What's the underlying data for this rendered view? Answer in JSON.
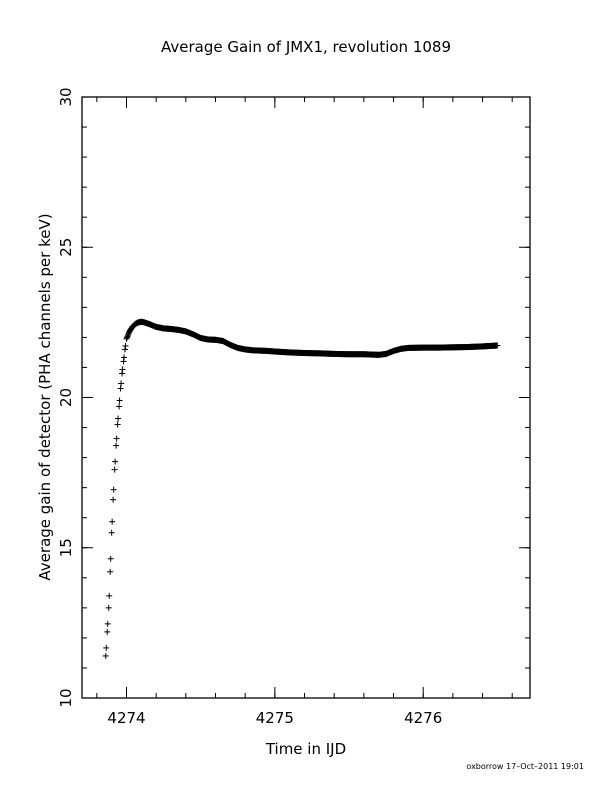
{
  "chart_data": {
    "type": "scatter",
    "title": "Average Gain of JMX1, revolution 1089",
    "xlabel": "Time in IJD",
    "ylabel": "Average gain of detector (PHA channels per keV)",
    "xlim": [
      4273.7,
      4276.72
    ],
    "ylim": [
      10,
      30
    ],
    "xticks": [
      4274,
      4275,
      4276
    ],
    "xtick_labels": [
      "4274",
      "4275",
      "4276"
    ],
    "yticks": [
      10,
      15,
      20,
      25,
      30
    ],
    "ytick_labels": [
      "10",
      "15",
      "20",
      "25",
      "30"
    ],
    "marker": "+",
    "grid": false,
    "legend": "none",
    "series": [
      {
        "points": [
          [
            4273.86,
            11.4
          ],
          [
            4273.87,
            12.2
          ],
          [
            4273.88,
            13.0
          ],
          [
            4273.89,
            14.2
          ],
          [
            4273.9,
            15.5
          ],
          [
            4273.91,
            16.6
          ],
          [
            4273.92,
            17.6
          ],
          [
            4273.93,
            18.4
          ],
          [
            4273.94,
            19.1
          ],
          [
            4273.95,
            19.7
          ],
          [
            4273.96,
            20.3
          ],
          [
            4273.97,
            20.8
          ],
          [
            4273.98,
            21.2
          ],
          [
            4273.99,
            21.6
          ],
          [
            4274.0,
            21.95
          ],
          [
            4274.02,
            22.2
          ],
          [
            4274.04,
            22.35
          ],
          [
            4274.06,
            22.45
          ],
          [
            4274.08,
            22.5
          ],
          [
            4274.1,
            22.52
          ],
          [
            4274.12,
            22.5
          ],
          [
            4274.15,
            22.45
          ],
          [
            4274.2,
            22.35
          ],
          [
            4274.25,
            22.3
          ],
          [
            4274.3,
            22.28
          ],
          [
            4274.35,
            22.25
          ],
          [
            4274.4,
            22.2
          ],
          [
            4274.45,
            22.1
          ],
          [
            4274.5,
            21.98
          ],
          [
            4274.55,
            21.93
          ],
          [
            4274.6,
            21.92
          ],
          [
            4274.65,
            21.88
          ],
          [
            4274.7,
            21.75
          ],
          [
            4274.75,
            21.65
          ],
          [
            4274.8,
            21.6
          ],
          [
            4274.85,
            21.57
          ],
          [
            4274.9,
            21.56
          ],
          [
            4274.95,
            21.55
          ],
          [
            4275.0,
            21.53
          ],
          [
            4275.1,
            21.5
          ],
          [
            4275.2,
            21.48
          ],
          [
            4275.3,
            21.47
          ],
          [
            4275.4,
            21.45
          ],
          [
            4275.5,
            21.44
          ],
          [
            4275.6,
            21.44
          ],
          [
            4275.65,
            21.43
          ],
          [
            4275.7,
            21.42
          ],
          [
            4275.75,
            21.45
          ],
          [
            4275.8,
            21.55
          ],
          [
            4275.85,
            21.62
          ],
          [
            4275.9,
            21.65
          ],
          [
            4276.0,
            21.66
          ],
          [
            4276.1,
            21.66
          ],
          [
            4276.2,
            21.67
          ],
          [
            4276.3,
            21.68
          ],
          [
            4276.4,
            21.7
          ],
          [
            4276.5,
            21.73
          ]
        ]
      }
    ]
  },
  "footer": {
    "stamp": "oxborrow 17–Oct–2011 19:01"
  }
}
